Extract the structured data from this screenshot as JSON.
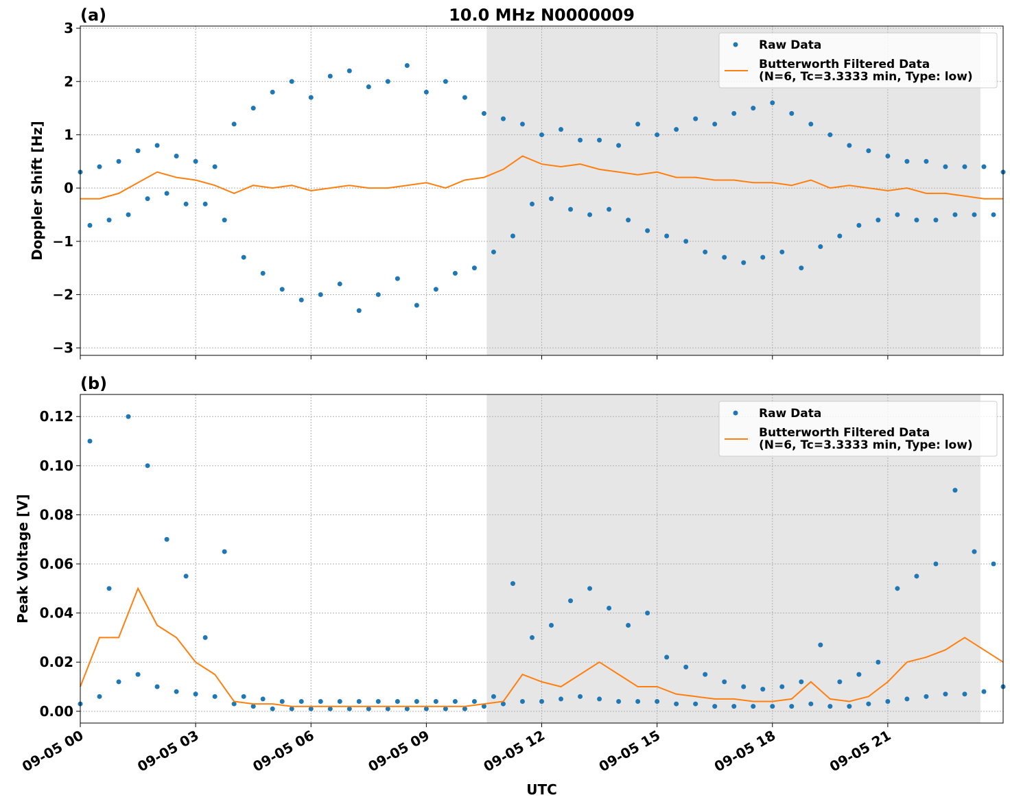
{
  "chart_data": [
    {
      "type": "scatter",
      "panel_label": "(a)",
      "title": "10.0 MHz N0000009",
      "y_label": "Doppler Shift [Hz]",
      "xlim": [
        0,
        24
      ],
      "xticks": [
        0,
        3,
        6,
        9,
        12,
        15,
        18,
        21
      ],
      "ylim": [
        -3.14,
        3.04
      ],
      "yticks": [
        {
          "value": -3,
          "label": "−3"
        },
        {
          "value": -2,
          "label": "−2"
        },
        {
          "value": -1,
          "label": "−1"
        },
        0,
        1,
        2,
        3
      ],
      "grid": true,
      "legend": "upper right",
      "shaded_span": [
        10.57,
        23.41
      ],
      "series": [
        {
          "name": "Raw Data",
          "style": "markers",
          "color": "#1f77b4",
          "x": [
            0,
            0.25,
            0.5,
            0.75,
            1,
            1.25,
            1.5,
            1.75,
            2,
            2.25,
            2.5,
            2.75,
            3,
            3.25,
            3.5,
            3.75,
            4,
            4.25,
            4.5,
            4.75,
            5,
            5.25,
            5.5,
            5.75,
            6,
            6.25,
            6.5,
            6.75,
            7,
            7.25,
            7.5,
            7.75,
            8,
            8.25,
            8.5,
            8.75,
            9,
            9.25,
            9.5,
            9.75,
            10,
            10.25,
            10.5,
            10.75,
            11,
            11.25,
            11.5,
            11.75,
            12,
            12.25,
            12.5,
            12.75,
            13,
            13.25,
            13.5,
            13.75,
            14,
            14.25,
            14.5,
            14.75,
            15,
            15.25,
            15.5,
            15.75,
            16,
            16.25,
            16.5,
            16.75,
            17,
            17.25,
            17.5,
            17.75,
            18,
            18.25,
            18.5,
            18.75,
            19,
            19.25,
            19.5,
            19.75,
            20,
            20.25,
            20.5,
            20.75,
            21,
            21.25,
            21.5,
            21.75,
            22,
            22.25,
            22.5,
            22.75,
            23,
            23.25,
            23.5,
            23.75,
            24
          ],
          "values": [
            0.3,
            -0.7,
            0.4,
            -0.6,
            0.5,
            -0.5,
            0.7,
            -0.2,
            0.8,
            -0.1,
            0.6,
            -0.3,
            0.5,
            -0.3,
            0.4,
            -0.6,
            1.2,
            -1.3,
            1.5,
            -1.6,
            1.8,
            -1.9,
            2.0,
            -2.1,
            1.7,
            -2.0,
            2.1,
            -1.8,
            2.2,
            -2.3,
            1.9,
            -2.0,
            2.0,
            -1.7,
            2.3,
            -2.2,
            1.8,
            -1.9,
            2.0,
            -1.6,
            1.7,
            -1.5,
            1.4,
            -1.2,
            1.3,
            -0.9,
            1.2,
            -0.3,
            1.0,
            -0.2,
            1.1,
            -0.4,
            0.9,
            -0.5,
            0.9,
            -0.4,
            0.8,
            -0.6,
            1.2,
            -0.8,
            1.0,
            -0.9,
            1.1,
            -1.0,
            1.3,
            -1.2,
            1.2,
            -1.3,
            1.4,
            -1.4,
            1.5,
            -1.3,
            1.6,
            -1.2,
            1.4,
            -1.5,
            1.2,
            -1.1,
            1.0,
            -0.9,
            0.8,
            -0.7,
            0.7,
            -0.6,
            0.6,
            -0.5,
            0.5,
            -0.6,
            0.5,
            -0.6,
            0.4,
            -0.5,
            0.4,
            -0.5,
            0.4,
            -0.5,
            0.3
          ]
        },
        {
          "name": "Butterworth Filtered Data\n(N=6, Tc=3.3333 min, Type: low)",
          "style": "line",
          "color": "#ff7f0e",
          "x": [
            0,
            0.5,
            1,
            1.5,
            2,
            2.5,
            3,
            3.5,
            4,
            4.5,
            5,
            5.5,
            6,
            6.5,
            7,
            7.5,
            8,
            8.5,
            9,
            9.5,
            10,
            10.5,
            11,
            11.5,
            12,
            12.5,
            13,
            13.5,
            14,
            14.5,
            15,
            15.5,
            16,
            16.5,
            17,
            17.5,
            18,
            18.5,
            19,
            19.5,
            20,
            20.5,
            21,
            21.5,
            22,
            22.5,
            23,
            23.5,
            24
          ],
          "values": [
            -0.2,
            -0.2,
            -0.1,
            0.1,
            0.3,
            0.2,
            0.15,
            0.05,
            -0.1,
            0.05,
            0.0,
            0.05,
            -0.05,
            0.0,
            0.05,
            0.0,
            0.0,
            0.05,
            0.1,
            0.0,
            0.15,
            0.2,
            0.35,
            0.6,
            0.45,
            0.4,
            0.45,
            0.35,
            0.3,
            0.25,
            0.3,
            0.2,
            0.2,
            0.15,
            0.15,
            0.1,
            0.1,
            0.05,
            0.15,
            0.0,
            0.05,
            0.0,
            -0.05,
            0.0,
            -0.1,
            -0.1,
            -0.15,
            -0.2,
            -0.2
          ]
        }
      ]
    },
    {
      "type": "scatter",
      "panel_label": "(b)",
      "y_label": "Peak Voltage [V]",
      "x_label": "UTC",
      "xlim": [
        0,
        24
      ],
      "xticks": [
        {
          "value": 0,
          "label": "09-05 00"
        },
        {
          "value": 3,
          "label": "09-05 03"
        },
        {
          "value": 6,
          "label": "09-05 06"
        },
        {
          "value": 9,
          "label": "09-05 09"
        },
        {
          "value": 12,
          "label": "09-05 12"
        },
        {
          "value": 15,
          "label": "09-05 15"
        },
        {
          "value": 18,
          "label": "09-05 18"
        },
        {
          "value": 21,
          "label": "09-05 21"
        }
      ],
      "ylim": [
        -0.0048,
        0.129
      ],
      "yticks": [
        {
          "value": 0,
          "label": "0.00"
        },
        {
          "value": 0.02,
          "label": "0.02"
        },
        {
          "value": 0.04,
          "label": "0.04"
        },
        {
          "value": 0.06,
          "label": "0.06"
        },
        {
          "value": 0.08,
          "label": "0.08"
        },
        {
          "value": 0.1,
          "label": "0.10"
        },
        {
          "value": 0.12,
          "label": "0.12"
        }
      ],
      "grid": true,
      "legend": "upper right",
      "shaded_span": [
        10.57,
        23.41
      ],
      "series": [
        {
          "name": "Raw Data",
          "style": "markers",
          "color": "#1f77b4",
          "x": [
            0,
            0.25,
            0.5,
            0.75,
            1,
            1.25,
            1.5,
            1.75,
            2,
            2.25,
            2.5,
            2.75,
            3,
            3.25,
            3.5,
            3.75,
            4,
            4.25,
            4.5,
            4.75,
            5,
            5.25,
            5.5,
            5.75,
            6,
            6.25,
            6.5,
            6.75,
            7,
            7.25,
            7.5,
            7.75,
            8,
            8.25,
            8.5,
            8.75,
            9,
            9.25,
            9.5,
            9.75,
            10,
            10.25,
            10.5,
            10.75,
            11,
            11.25,
            11.5,
            11.75,
            12,
            12.25,
            12.5,
            12.75,
            13,
            13.25,
            13.5,
            13.75,
            14,
            14.25,
            14.5,
            14.75,
            15,
            15.25,
            15.5,
            15.75,
            16,
            16.25,
            16.5,
            16.75,
            17,
            17.25,
            17.5,
            17.75,
            18,
            18.25,
            18.5,
            18.75,
            19,
            19.25,
            19.5,
            19.75,
            20,
            20.25,
            20.5,
            20.75,
            21,
            21.25,
            21.5,
            21.75,
            22,
            22.25,
            22.5,
            22.75,
            23,
            23.25,
            23.5,
            23.75,
            24
          ],
          "values": [
            0.003,
            0.11,
            0.006,
            0.05,
            0.012,
            0.12,
            0.015,
            0.1,
            0.01,
            0.07,
            0.008,
            0.055,
            0.007,
            0.03,
            0.006,
            0.065,
            0.003,
            0.006,
            0.002,
            0.005,
            0.001,
            0.004,
            0.001,
            0.004,
            0.001,
            0.004,
            0.001,
            0.004,
            0.001,
            0.004,
            0.001,
            0.004,
            0.001,
            0.004,
            0.001,
            0.004,
            0.001,
            0.004,
            0.001,
            0.004,
            0.001,
            0.004,
            0.002,
            0.006,
            0.003,
            0.052,
            0.004,
            0.03,
            0.004,
            0.035,
            0.005,
            0.045,
            0.006,
            0.05,
            0.005,
            0.042,
            0.004,
            0.035,
            0.004,
            0.04,
            0.004,
            0.022,
            0.003,
            0.018,
            0.003,
            0.015,
            0.002,
            0.012,
            0.002,
            0.01,
            0.002,
            0.009,
            0.002,
            0.01,
            0.002,
            0.012,
            0.003,
            0.027,
            0.002,
            0.012,
            0.002,
            0.015,
            0.003,
            0.02,
            0.004,
            0.05,
            0.005,
            0.055,
            0.006,
            0.06,
            0.007,
            0.09,
            0.007,
            0.065,
            0.008,
            0.06,
            0.01
          ]
        },
        {
          "name": "Butterworth Filtered Data\n(N=6, Tc=3.3333 min, Type: low)",
          "style": "line",
          "color": "#ff7f0e",
          "x": [
            0,
            0.5,
            1,
            1.5,
            2,
            2.5,
            3,
            3.5,
            4,
            4.5,
            5,
            5.5,
            6,
            6.5,
            7,
            7.5,
            8,
            8.5,
            9,
            9.5,
            10,
            10.5,
            11,
            11.5,
            12,
            12.5,
            13,
            13.5,
            14,
            14.5,
            15,
            15.5,
            16,
            16.5,
            17,
            17.5,
            18,
            18.5,
            19,
            19.5,
            20,
            20.5,
            21,
            21.5,
            22,
            22.5,
            23,
            23.5,
            24
          ],
          "values": [
            0.01,
            0.03,
            0.03,
            0.05,
            0.035,
            0.03,
            0.02,
            0.015,
            0.004,
            0.003,
            0.003,
            0.002,
            0.002,
            0.002,
            0.002,
            0.002,
            0.002,
            0.002,
            0.002,
            0.002,
            0.002,
            0.003,
            0.004,
            0.015,
            0.012,
            0.01,
            0.015,
            0.02,
            0.015,
            0.01,
            0.01,
            0.007,
            0.006,
            0.005,
            0.005,
            0.004,
            0.004,
            0.005,
            0.012,
            0.005,
            0.004,
            0.006,
            0.012,
            0.02,
            0.022,
            0.025,
            0.03,
            0.025,
            0.02
          ]
        }
      ]
    }
  ]
}
